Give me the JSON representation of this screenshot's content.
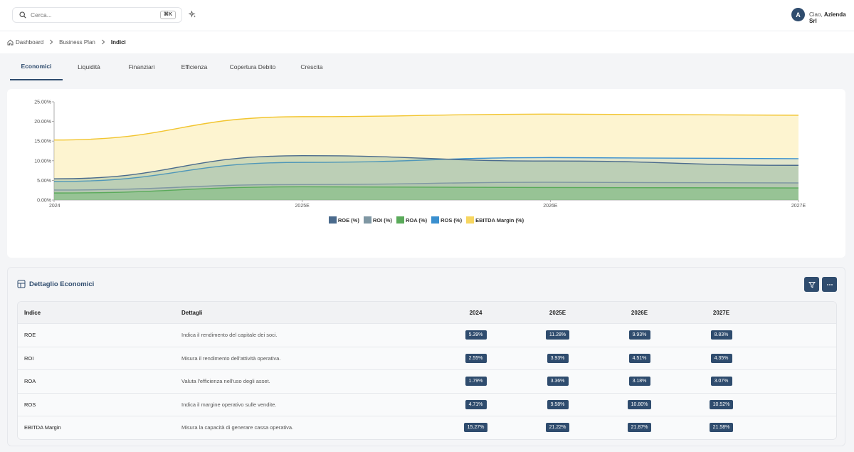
{
  "topbar": {
    "search_placeholder": "Cerca...",
    "shortcut": "⌘K",
    "avatar_letter": "A",
    "greeting": "Ciao,",
    "company": "Azienda Srl"
  },
  "breadcrumb": [
    "Dashboard",
    "Business Plan",
    "Indici"
  ],
  "tabs": [
    {
      "label": "Economici",
      "active": true
    },
    {
      "label": "Liquidità",
      "active": false
    },
    {
      "label": "Finanziari",
      "active": false
    },
    {
      "label": "Efficienza",
      "active": false
    },
    {
      "label": "Copertura Debito",
      "active": false
    },
    {
      "label": "Crescita",
      "active": false
    }
  ],
  "chart_data": {
    "type": "area",
    "categories": [
      "2024",
      "2025E",
      "2026E",
      "2027E"
    ],
    "ylim": [
      0,
      25
    ],
    "yticks": [
      "0.00%",
      "5.00%",
      "10.00%",
      "15.00%",
      "20.00%",
      "25.00%"
    ],
    "series": [
      {
        "name": "ROE (%)",
        "values": [
          5.39,
          11.28,
          9.93,
          8.83
        ],
        "color": "#4a6a8c",
        "fill": "rgba(120,165,140,0.35)"
      },
      {
        "name": "ROI (%)",
        "values": [
          2.55,
          3.93,
          4.51,
          4.35
        ],
        "color": "#7f97a3",
        "fill": "rgba(150,175,160,0.25)"
      },
      {
        "name": "ROA (%)",
        "values": [
          1.79,
          3.36,
          3.18,
          3.07
        ],
        "color": "#5aaa5a",
        "fill": "rgba(110,190,110,0.40)"
      },
      {
        "name": "ROS (%)",
        "values": [
          4.71,
          9.58,
          10.8,
          10.52
        ],
        "color": "#3a8fcf",
        "fill": "rgba(100,160,190,0.18)"
      },
      {
        "name": "EBITDA Margin (%)",
        "values": [
          15.27,
          21.22,
          21.87,
          21.58
        ],
        "color": "#f2c530",
        "fill": "rgba(250,230,150,0.45)"
      }
    ]
  },
  "legend_colors": [
    "#4a6a8c",
    "#7f97a3",
    "#5aaa5a",
    "#3a8fcf",
    "#f7d660"
  ],
  "table": {
    "title": "Dettaglio Economici",
    "headers": [
      "Indice",
      "Dettagli",
      "2024",
      "2025E",
      "2026E",
      "2027E"
    ],
    "rows": [
      {
        "name": "ROE",
        "detail": "Indica il rendimento del capitale dei soci.",
        "values": [
          "5.39%",
          "11.28%",
          "9.93%",
          "8.83%"
        ]
      },
      {
        "name": "ROI",
        "detail": "Misura il rendimento dell'attività operativa.",
        "values": [
          "2.55%",
          "3.93%",
          "4.51%",
          "4.35%"
        ]
      },
      {
        "name": "ROA",
        "detail": "Valuta l'efficienza nell'uso degli asset.",
        "values": [
          "1.79%",
          "3.36%",
          "3.18%",
          "3.07%"
        ]
      },
      {
        "name": "ROS",
        "detail": "Indica il margine operativo sulle vendite.",
        "values": [
          "4.71%",
          "9.58%",
          "10.80%",
          "10.52%"
        ]
      },
      {
        "name": "EBITDA Margin",
        "detail": "Misura la capacità di generare cassa operativa.",
        "values": [
          "15.27%",
          "21.22%",
          "21.87%",
          "21.58%"
        ]
      }
    ]
  }
}
